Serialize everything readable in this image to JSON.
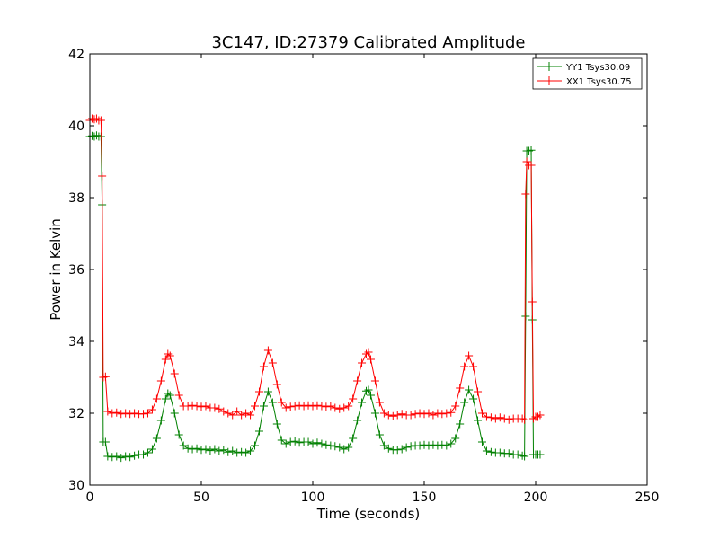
{
  "chart_data": {
    "type": "line",
    "title": "3C147, ID:27379 Calibrated Amplitude",
    "xlabel": "Time (seconds)",
    "ylabel": "Power in Kelvin",
    "xlim": [
      0,
      250
    ],
    "ylim": [
      30,
      42
    ],
    "xticks": [
      0,
      50,
      100,
      150,
      200,
      250
    ],
    "yticks": [
      30,
      32,
      34,
      36,
      38,
      40,
      42
    ],
    "grid": false,
    "legend_position": "top-right",
    "marker": "+",
    "series": [
      {
        "name": "YY1 Tsys30.09",
        "color": "#008000",
        "points": [
          [
            0,
            39.7
          ],
          [
            1,
            39.72
          ],
          [
            2,
            39.7
          ],
          [
            3,
            39.73
          ],
          [
            4,
            39.7
          ],
          [
            5,
            39.7
          ],
          [
            5.5,
            37.8
          ],
          [
            6,
            31.2
          ],
          [
            7,
            31.2
          ],
          [
            8,
            30.8
          ],
          [
            10,
            30.78
          ],
          [
            12,
            30.8
          ],
          [
            14,
            30.76
          ],
          [
            16,
            30.8
          ],
          [
            18,
            30.78
          ],
          [
            20,
            30.82
          ],
          [
            22,
            30.85
          ],
          [
            24,
            30.85
          ],
          [
            26,
            30.9
          ],
          [
            28,
            31.0
          ],
          [
            30,
            31.3
          ],
          [
            32,
            31.8
          ],
          [
            34,
            32.4
          ],
          [
            35,
            32.55
          ],
          [
            36,
            32.5
          ],
          [
            38,
            32.0
          ],
          [
            40,
            31.4
          ],
          [
            42,
            31.1
          ],
          [
            44,
            31.02
          ],
          [
            46,
            31.0
          ],
          [
            48,
            31.02
          ],
          [
            50,
            30.98
          ],
          [
            52,
            31.0
          ],
          [
            54,
            30.96
          ],
          [
            56,
            31.0
          ],
          [
            58,
            30.95
          ],
          [
            60,
            30.98
          ],
          [
            62,
            30.92
          ],
          [
            64,
            30.95
          ],
          [
            66,
            30.9
          ],
          [
            68,
            30.92
          ],
          [
            70,
            30.9
          ],
          [
            72,
            30.95
          ],
          [
            74,
            31.1
          ],
          [
            76,
            31.5
          ],
          [
            78,
            32.2
          ],
          [
            80,
            32.6
          ],
          [
            82,
            32.3
          ],
          [
            84,
            31.7
          ],
          [
            86,
            31.25
          ],
          [
            88,
            31.15
          ],
          [
            90,
            31.2
          ],
          [
            92,
            31.22
          ],
          [
            94,
            31.18
          ],
          [
            96,
            31.2
          ],
          [
            98,
            31.2
          ],
          [
            100,
            31.15
          ],
          [
            102,
            31.18
          ],
          [
            104,
            31.15
          ],
          [
            106,
            31.12
          ],
          [
            108,
            31.1
          ],
          [
            110,
            31.08
          ],
          [
            112,
            31.05
          ],
          [
            114,
            31.0
          ],
          [
            116,
            31.05
          ],
          [
            118,
            31.3
          ],
          [
            120,
            31.8
          ],
          [
            122,
            32.3
          ],
          [
            124,
            32.62
          ],
          [
            125,
            32.65
          ],
          [
            126,
            32.5
          ],
          [
            128,
            32.0
          ],
          [
            130,
            31.4
          ],
          [
            132,
            31.1
          ],
          [
            134,
            31.02
          ],
          [
            136,
            30.98
          ],
          [
            138,
            30.98
          ],
          [
            140,
            31.0
          ],
          [
            142,
            31.05
          ],
          [
            144,
            31.08
          ],
          [
            146,
            31.1
          ],
          [
            148,
            31.1
          ],
          [
            150,
            31.12
          ],
          [
            152,
            31.1
          ],
          [
            154,
            31.12
          ],
          [
            156,
            31.1
          ],
          [
            158,
            31.12
          ],
          [
            160,
            31.1
          ],
          [
            162,
            31.15
          ],
          [
            164,
            31.3
          ],
          [
            166,
            31.7
          ],
          [
            168,
            32.3
          ],
          [
            170,
            32.65
          ],
          [
            172,
            32.4
          ],
          [
            174,
            31.8
          ],
          [
            176,
            31.2
          ],
          [
            178,
            30.95
          ],
          [
            180,
            30.92
          ],
          [
            182,
            30.9
          ],
          [
            184,
            30.9
          ],
          [
            186,
            30.88
          ],
          [
            188,
            30.88
          ],
          [
            190,
            30.85
          ],
          [
            192,
            30.85
          ],
          [
            194,
            30.82
          ],
          [
            195,
            30.8
          ],
          [
            195.5,
            34.7
          ],
          [
            196,
            39.3
          ],
          [
            197,
            39.3
          ],
          [
            198,
            39.32
          ],
          [
            198.5,
            34.6
          ],
          [
            199,
            30.85
          ],
          [
            200,
            30.85
          ],
          [
            201,
            30.85
          ],
          [
            202,
            30.85
          ]
        ]
      },
      {
        "name": "XX1 Tsys30.75",
        "color": "#ff0000",
        "points": [
          [
            0,
            40.15
          ],
          [
            1,
            40.2
          ],
          [
            2,
            40.18
          ],
          [
            3,
            40.2
          ],
          [
            4,
            40.15
          ],
          [
            5,
            40.15
          ],
          [
            5.5,
            38.6
          ],
          [
            6,
            33.0
          ],
          [
            7,
            33.02
          ],
          [
            8,
            32.05
          ],
          [
            10,
            32.0
          ],
          [
            12,
            32.02
          ],
          [
            14,
            31.98
          ],
          [
            16,
            32.0
          ],
          [
            18,
            31.98
          ],
          [
            20,
            32.0
          ],
          [
            22,
            31.98
          ],
          [
            24,
            31.98
          ],
          [
            26,
            32.0
          ],
          [
            28,
            32.1
          ],
          [
            30,
            32.4
          ],
          [
            32,
            32.9
          ],
          [
            34,
            33.5
          ],
          [
            35,
            33.65
          ],
          [
            36,
            33.6
          ],
          [
            38,
            33.1
          ],
          [
            40,
            32.5
          ],
          [
            42,
            32.2
          ],
          [
            44,
            32.2
          ],
          [
            46,
            32.22
          ],
          [
            48,
            32.2
          ],
          [
            50,
            32.18
          ],
          [
            52,
            32.2
          ],
          [
            54,
            32.15
          ],
          [
            56,
            32.15
          ],
          [
            58,
            32.12
          ],
          [
            60,
            32.05
          ],
          [
            62,
            32.0
          ],
          [
            64,
            31.95
          ],
          [
            66,
            32.05
          ],
          [
            68,
            31.95
          ],
          [
            70,
            32.0
          ],
          [
            72,
            31.95
          ],
          [
            74,
            32.2
          ],
          [
            76,
            32.6
          ],
          [
            78,
            33.3
          ],
          [
            80,
            33.75
          ],
          [
            82,
            33.4
          ],
          [
            84,
            32.8
          ],
          [
            86,
            32.3
          ],
          [
            88,
            32.15
          ],
          [
            90,
            32.18
          ],
          [
            92,
            32.2
          ],
          [
            94,
            32.22
          ],
          [
            96,
            32.2
          ],
          [
            98,
            32.22
          ],
          [
            100,
            32.2
          ],
          [
            102,
            32.22
          ],
          [
            104,
            32.2
          ],
          [
            106,
            32.18
          ],
          [
            108,
            32.2
          ],
          [
            110,
            32.15
          ],
          [
            112,
            32.12
          ],
          [
            114,
            32.15
          ],
          [
            116,
            32.2
          ],
          [
            118,
            32.4
          ],
          [
            120,
            32.9
          ],
          [
            122,
            33.4
          ],
          [
            124,
            33.65
          ],
          [
            125,
            33.7
          ],
          [
            126,
            33.5
          ],
          [
            128,
            32.9
          ],
          [
            130,
            32.3
          ],
          [
            132,
            32.0
          ],
          [
            134,
            31.95
          ],
          [
            136,
            31.92
          ],
          [
            138,
            31.95
          ],
          [
            140,
            31.98
          ],
          [
            142,
            31.95
          ],
          [
            144,
            31.95
          ],
          [
            146,
            31.98
          ],
          [
            148,
            32.0
          ],
          [
            150,
            31.98
          ],
          [
            152,
            32.0
          ],
          [
            154,
            31.95
          ],
          [
            156,
            32.0
          ],
          [
            158,
            31.98
          ],
          [
            160,
            32.0
          ],
          [
            162,
            32.02
          ],
          [
            164,
            32.2
          ],
          [
            166,
            32.7
          ],
          [
            168,
            33.3
          ],
          [
            170,
            33.6
          ],
          [
            172,
            33.3
          ],
          [
            174,
            32.6
          ],
          [
            176,
            32.0
          ],
          [
            178,
            31.9
          ],
          [
            180,
            31.88
          ],
          [
            182,
            31.85
          ],
          [
            184,
            31.88
          ],
          [
            186,
            31.85
          ],
          [
            188,
            31.82
          ],
          [
            190,
            31.85
          ],
          [
            192,
            31.85
          ],
          [
            194,
            31.85
          ],
          [
            195,
            31.82
          ],
          [
            195.5,
            38.1
          ],
          [
            196,
            39.0
          ],
          [
            197,
            38.9
          ],
          [
            198,
            38.9
          ],
          [
            198.5,
            35.1
          ],
          [
            199,
            31.85
          ],
          [
            200,
            31.9
          ],
          [
            201,
            31.9
          ],
          [
            202,
            31.95
          ]
        ]
      }
    ]
  }
}
